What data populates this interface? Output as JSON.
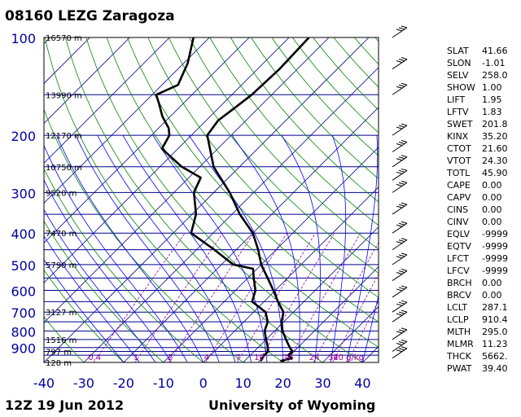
{
  "header": {
    "title": "08160 LEZG Zaragoza"
  },
  "footer": {
    "datetime": "12Z 19 Jun 2012",
    "source": "University of Wyoming"
  },
  "colors": {
    "pressure_labels": "#0000a0",
    "isobar": "#00008b",
    "isotherm": "#00008b",
    "dry_adiabat": "#008800",
    "moist_adiabat": "#0000ff",
    "mixing_ratio": "#990099",
    "profile": "#000000"
  },
  "chart_data": {
    "type": "skew-t log-p sounding",
    "title": "08160 LEZG Zaragoza",
    "x_axis_label": "",
    "y_axis_label": "",
    "x_tick_labels": [
      "-40",
      "-30",
      "-20",
      "-10",
      "0",
      "10",
      "20",
      "30",
      "40"
    ],
    "x_range_celsius_at_1000hPa": [
      -40,
      44
    ],
    "y_scale": "log",
    "y_range_hPa": [
      1000,
      100
    ],
    "pressure_levels_hPa": [
      100,
      200,
      300,
      400,
      500,
      600,
      700,
      800,
      900
    ],
    "height_labels": [
      {
        "p": 100,
        "label": "16570 m"
      },
      {
        "p": 150,
        "label": "13990 m"
      },
      {
        "p": 200,
        "label": "12170 m"
      },
      {
        "p": 250,
        "label": "10750 m"
      },
      {
        "p": 300,
        "label": "9520 m"
      },
      {
        "p": 400,
        "label": "7470 m"
      },
      {
        "p": 500,
        "label": "5790 m"
      },
      {
        "p": 700,
        "label": "3127 m"
      },
      {
        "p": 850,
        "label": "1516 m"
      },
      {
        "p": 925,
        "label": "797 m"
      },
      {
        "p": 1000,
        "label": "128 m"
      }
    ],
    "mixing_ratio_labels": [
      "0.4",
      "1",
      "2",
      "4",
      "7",
      "10",
      "16",
      "24",
      "32",
      "40 g/kg"
    ],
    "mixing_ratio_values_gkg": [
      0.4,
      1,
      2,
      4,
      7,
      10,
      16,
      24,
      32,
      40
    ],
    "temperature_profile": [
      {
        "p": 990,
        "t": 19.0
      },
      {
        "p": 970,
        "t": 21.2
      },
      {
        "p": 950,
        "t": 19.5
      },
      {
        "p": 925,
        "t": 19.6
      },
      {
        "p": 900,
        "t": 18.0
      },
      {
        "p": 850,
        "t": 15.0
      },
      {
        "p": 800,
        "t": 12.0
      },
      {
        "p": 750,
        "t": 9.5
      },
      {
        "p": 700,
        "t": 7.5
      },
      {
        "p": 650,
        "t": 3.5
      },
      {
        "p": 600,
        "t": -0.5
      },
      {
        "p": 550,
        "t": -5.0
      },
      {
        "p": 500,
        "t": -10.0
      },
      {
        "p": 450,
        "t": -14.5
      },
      {
        "p": 400,
        "t": -20.0
      },
      {
        "p": 350,
        "t": -28.0
      },
      {
        "p": 300,
        "t": -36.0
      },
      {
        "p": 250,
        "t": -46.5
      },
      {
        "p": 200,
        "t": -56.0
      },
      {
        "p": 180,
        "t": -57.0
      },
      {
        "p": 165,
        "t": -56.0
      },
      {
        "p": 150,
        "t": -55.0
      },
      {
        "p": 125,
        "t": -54.5
      },
      {
        "p": 100,
        "t": -55.0
      }
    ],
    "dewpoint_profile": [
      {
        "p": 990,
        "t": 14.0
      },
      {
        "p": 950,
        "t": 13.5
      },
      {
        "p": 925,
        "t": 13.5
      },
      {
        "p": 900,
        "t": 12.5
      },
      {
        "p": 850,
        "t": 10.0
      },
      {
        "p": 800,
        "t": 7.5
      },
      {
        "p": 750,
        "t": 6.0
      },
      {
        "p": 700,
        "t": 3.0
      },
      {
        "p": 650,
        "t": -3.0
      },
      {
        "p": 600,
        "t": -5.0
      },
      {
        "p": 550,
        "t": -8.5
      },
      {
        "p": 515,
        "t": -11.0
      },
      {
        "p": 500,
        "t": -17.0
      },
      {
        "p": 450,
        "t": -25.5
      },
      {
        "p": 400,
        "t": -35.5
      },
      {
        "p": 350,
        "t": -39.0
      },
      {
        "p": 300,
        "t": -45.0
      },
      {
        "p": 270,
        "t": -47.0
      },
      {
        "p": 250,
        "t": -54.5
      },
      {
        "p": 220,
        "t": -64.0
      },
      {
        "p": 200,
        "t": -65.5
      },
      {
        "p": 190,
        "t": -67.5
      },
      {
        "p": 175,
        "t": -72.0
      },
      {
        "p": 160,
        "t": -76.0
      },
      {
        "p": 150,
        "t": -79.0
      },
      {
        "p": 140,
        "t": -76.0
      },
      {
        "p": 120,
        "t": -79.0
      },
      {
        "p": 100,
        "t": -84.0
      }
    ],
    "wind_barb_pressures_hPa": [
      970,
      925,
      850,
      750,
      700,
      630,
      560,
      500,
      450,
      400,
      350,
      300,
      275,
      250,
      225,
      200,
      150,
      125,
      100
    ]
  },
  "indices": [
    {
      "name": "SLAT",
      "value": "41.66"
    },
    {
      "name": "SLON",
      "value": "-1.01"
    },
    {
      "name": "SELV",
      "value": "258.0"
    },
    {
      "name": "SHOW",
      "value": "1.00"
    },
    {
      "name": "LIFT",
      "value": "1.95"
    },
    {
      "name": "LFTV",
      "value": "1.83"
    },
    {
      "name": "SWET",
      "value": "201.8"
    },
    {
      "name": "KINX",
      "value": "35.20"
    },
    {
      "name": "CTOT",
      "value": "21.60"
    },
    {
      "name": "VTOT",
      "value": "24.30"
    },
    {
      "name": "TOTL",
      "value": "45.90"
    },
    {
      "name": "CAPE",
      "value": "0.00"
    },
    {
      "name": "CAPV",
      "value": "0.00"
    },
    {
      "name": "CINS",
      "value": "0.00"
    },
    {
      "name": "CINV",
      "value": "0.00"
    },
    {
      "name": "EQLV",
      "value": "-9999"
    },
    {
      "name": "EQTV",
      "value": "-9999"
    },
    {
      "name": "LFCT",
      "value": "-9999"
    },
    {
      "name": "LFCV",
      "value": "-9999"
    },
    {
      "name": "BRCH",
      "value": "0.00"
    },
    {
      "name": "BRCV",
      "value": "0.00"
    },
    {
      "name": "LCLT",
      "value": "287.1"
    },
    {
      "name": "LCLP",
      "value": "910.4"
    },
    {
      "name": "MLTH",
      "value": "295.0"
    },
    {
      "name": "MLMR",
      "value": "11.23"
    },
    {
      "name": "THCK",
      "value": "5662."
    },
    {
      "name": "PWAT",
      "value": "39.40"
    }
  ]
}
